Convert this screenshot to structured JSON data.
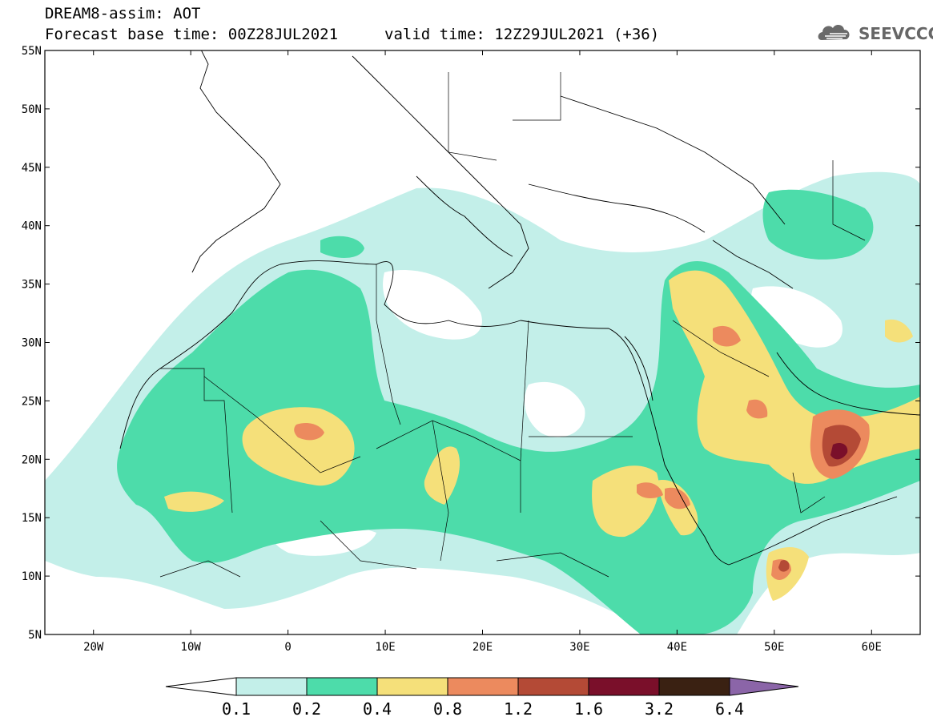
{
  "header": {
    "title_line1": "DREAM8-assim: AOT",
    "title_line2": "Forecast base time: 00Z28JUL2021",
    "valid_time": "valid time: 12Z29JUL2021 (+36)",
    "logo_text": "SEEVCCC"
  },
  "map": {
    "variable": "AOT",
    "lon_range": [
      -25,
      65
    ],
    "lat_range": [
      5,
      55
    ],
    "lat_labels": [
      "55N",
      "50N",
      "45N",
      "40N",
      "35N",
      "30N",
      "25N",
      "20N",
      "15N",
      "10N",
      "5N"
    ],
    "lon_labels": [
      "20W",
      "10W",
      "0",
      "10E",
      "20E",
      "30E",
      "40E",
      "50E",
      "60E"
    ]
  },
  "colorbar": {
    "levels": [
      "0.1",
      "0.2",
      "0.4",
      "0.8",
      "1.2",
      "1.6",
      "3.2",
      "6.4"
    ],
    "colors": [
      "#c3efe9",
      "#4ddcaa",
      "#f5e07a",
      "#ec8a5e",
      "#b44a36",
      "#7a0f2a",
      "#3a2112",
      "#8b65a8"
    ]
  },
  "colors": {
    "c1": "#c3efe9",
    "c2": "#4ddcaa",
    "c3": "#f5e07a",
    "c4": "#ec8a5e",
    "c5": "#b44a36",
    "c6": "#7a0f2a"
  }
}
